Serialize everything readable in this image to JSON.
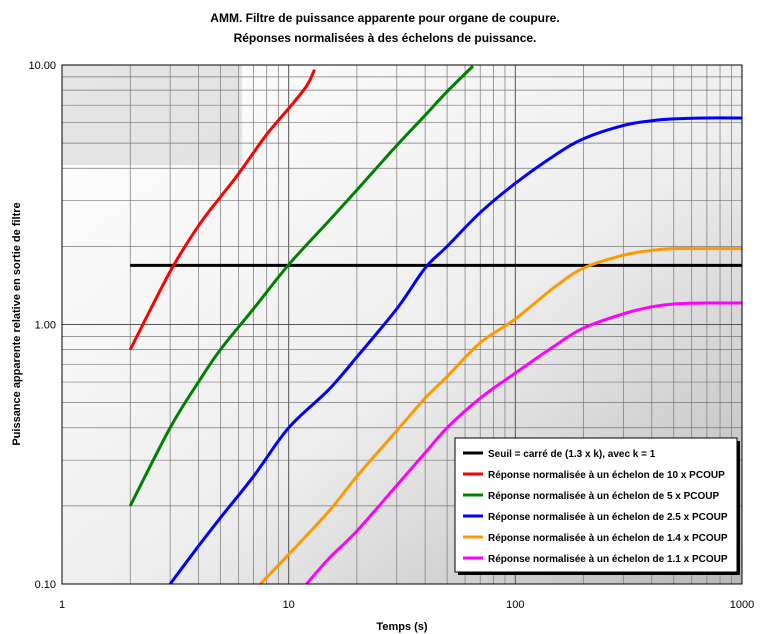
{
  "chart_data": {
    "type": "line",
    "title": "AMM. Filtre de puissance apparente pour organe de coupure.",
    "subtitle": "Réponses normalisées à des échelons de puissance.",
    "xlabel": "Temps (s)",
    "ylabel": "Puissance apparente relative en sortie de filtre",
    "xscale": "log",
    "yscale": "log",
    "xlim": [
      1,
      1000
    ],
    "ylim": [
      0.1,
      10
    ],
    "x_tick_labels": [
      "1",
      "10",
      "100",
      "1000"
    ],
    "y_tick_labels": [
      "0.10",
      "1.00",
      "10.00"
    ],
    "grid": true,
    "legend_position": "bottom-right",
    "series": [
      {
        "name": "Seuil = carré de (1.3 x k), avec k = 1",
        "color": "#000000",
        "x": [
          2,
          1000
        ],
        "y": [
          1.69,
          1.69
        ]
      },
      {
        "name": "Réponse normalisée à un échelon de 10 x PCOUP",
        "color": "#ff0000",
        "x": [
          2,
          3,
          4,
          5,
          6,
          8,
          10,
          12,
          13
        ],
        "y": [
          0.8,
          1.6,
          2.4,
          3.1,
          3.8,
          5.4,
          6.8,
          8.3,
          9.6
        ]
      },
      {
        "name": "Réponse normalisée à un échelon de 5 x PCOUP",
        "color": "#008000",
        "x": [
          2,
          3,
          4,
          5,
          7,
          10,
          15,
          20,
          30,
          40,
          50,
          65
        ],
        "y": [
          0.2,
          0.4,
          0.6,
          0.8,
          1.15,
          1.7,
          2.5,
          3.3,
          4.9,
          6.4,
          7.9,
          9.9
        ]
      },
      {
        "name": "Réponse normalisée à un échelon de 2.5 x PCOUP",
        "color": "#0000ff",
        "x": [
          3,
          4,
          5,
          7,
          10,
          15,
          20,
          30,
          40,
          50,
          70,
          100,
          150,
          200,
          300,
          400,
          500,
          700,
          1000
        ],
        "y": [
          0.1,
          0.14,
          0.18,
          0.26,
          0.4,
          0.56,
          0.75,
          1.15,
          1.65,
          2.0,
          2.7,
          3.5,
          4.5,
          5.2,
          5.85,
          6.1,
          6.2,
          6.25,
          6.25
        ]
      },
      {
        "name": "Réponse normalisée à un échelon de 1.4 x PCOUP",
        "color": "#ff9900",
        "x": [
          7.5,
          10,
          15,
          20,
          30,
          40,
          50,
          70,
          100,
          150,
          200,
          300,
          400,
          500,
          700,
          1000
        ],
        "y": [
          0.1,
          0.13,
          0.19,
          0.26,
          0.39,
          0.52,
          0.63,
          0.85,
          1.05,
          1.4,
          1.65,
          1.85,
          1.93,
          1.96,
          1.96,
          1.96
        ]
      },
      {
        "name": "Réponse normalisée à un échelon de 1.1 x PCOUP",
        "color": "#ff00ff",
        "x": [
          12,
          15,
          20,
          30,
          40,
          50,
          70,
          100,
          150,
          200,
          300,
          400,
          500,
          700,
          1000
        ],
        "y": [
          0.1,
          0.125,
          0.16,
          0.24,
          0.32,
          0.4,
          0.52,
          0.65,
          0.83,
          0.97,
          1.1,
          1.17,
          1.2,
          1.21,
          1.21
        ]
      }
    ]
  }
}
